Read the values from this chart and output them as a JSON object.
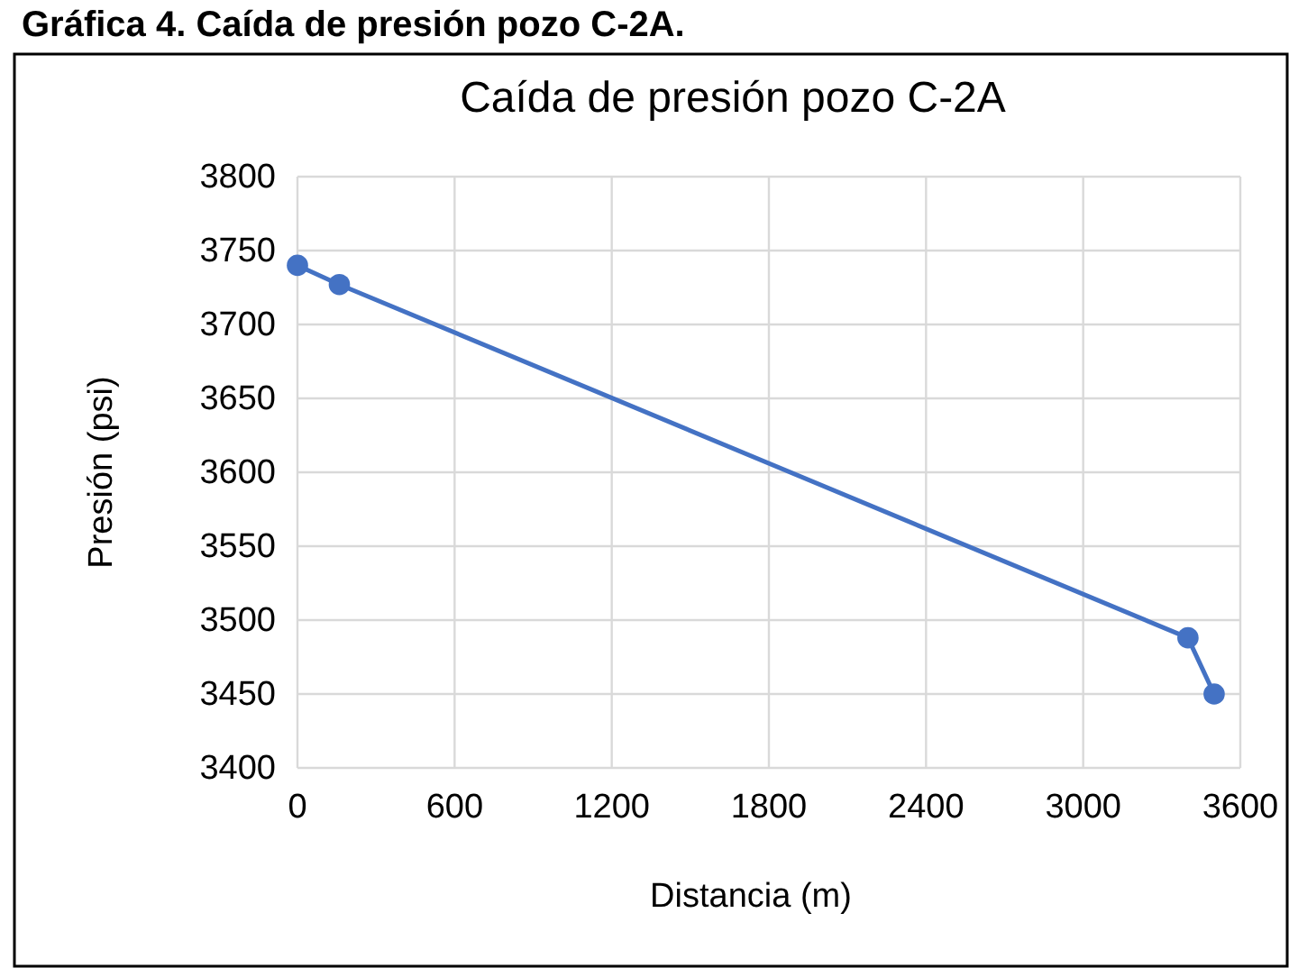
{
  "chart_data": {
    "type": "line",
    "title": "Caída de presión pozo C-2A",
    "xlabel": "Distancia (m)",
    "ylabel": "Presión (psi)",
    "annotations": [
      "Gráfica 4. Caída de presión pozo C-2A."
    ],
    "x": [
      0,
      160,
      3400,
      3500
    ],
    "series": [
      {
        "color": "#4472c4",
        "values": [
          3740,
          3727,
          3488,
          3450
        ]
      }
    ],
    "xlim": [
      0,
      3600
    ],
    "xticks": [
      0,
      600,
      1200,
      1800,
      2400,
      3000,
      3600
    ],
    "ylim": [
      3400,
      3800
    ],
    "yticks": [
      3400,
      3450,
      3500,
      3550,
      3600,
      3650,
      3700,
      3750,
      3800
    ],
    "grid": true,
    "marker": "circle",
    "line_style": "solid"
  }
}
